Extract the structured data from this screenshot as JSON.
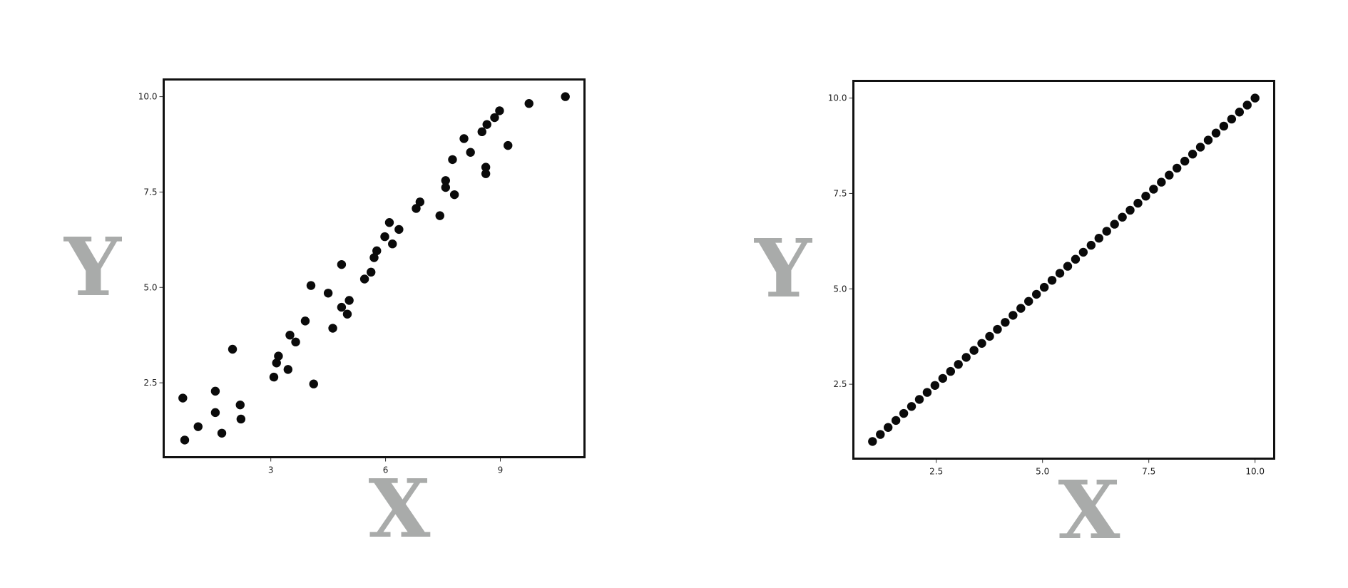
{
  "colors": {
    "points": "#0a0a0a",
    "axis_title": "#a9abaa",
    "frame": "#111111",
    "grid": "#efefef"
  },
  "chart_data": [
    {
      "type": "scatter",
      "xlabel": "X",
      "ylabel": "Y",
      "xlim": [
        0.2,
        11.2
      ],
      "ylim": [
        0.55,
        10.45
      ],
      "xticks": [
        3,
        6,
        9
      ],
      "yticks": [
        2.5,
        5.0,
        7.5,
        10.0
      ],
      "xtick_labels": [
        "3",
        "6",
        "9"
      ],
      "ytick_labels": [
        "2.5",
        "5.0",
        "7.5",
        "10.0"
      ],
      "grid": true,
      "points": [
        {
          "x": 0.7,
          "y": 2.1
        },
        {
          "x": 0.75,
          "y": 1.0
        },
        {
          "x": 1.1,
          "y": 1.35
        },
        {
          "x": 1.55,
          "y": 1.72
        },
        {
          "x": 1.55,
          "y": 2.28
        },
        {
          "x": 1.72,
          "y": 1.18
        },
        {
          "x": 2.0,
          "y": 3.38
        },
        {
          "x": 2.2,
          "y": 1.92
        },
        {
          "x": 2.22,
          "y": 1.55
        },
        {
          "x": 3.08,
          "y": 2.65
        },
        {
          "x": 3.15,
          "y": 3.02
        },
        {
          "x": 3.2,
          "y": 3.2
        },
        {
          "x": 3.45,
          "y": 2.85
        },
        {
          "x": 3.5,
          "y": 3.75
        },
        {
          "x": 3.65,
          "y": 3.57
        },
        {
          "x": 3.9,
          "y": 4.12
        },
        {
          "x": 4.05,
          "y": 5.05
        },
        {
          "x": 4.12,
          "y": 2.47
        },
        {
          "x": 4.5,
          "y": 4.85
        },
        {
          "x": 4.62,
          "y": 3.93
        },
        {
          "x": 4.85,
          "y": 5.6
        },
        {
          "x": 4.85,
          "y": 4.48
        },
        {
          "x": 5.0,
          "y": 4.3
        },
        {
          "x": 5.05,
          "y": 4.66
        },
        {
          "x": 5.45,
          "y": 5.22
        },
        {
          "x": 5.62,
          "y": 5.4
        },
        {
          "x": 5.7,
          "y": 5.78
        },
        {
          "x": 5.77,
          "y": 5.96
        },
        {
          "x": 5.98,
          "y": 6.33
        },
        {
          "x": 6.1,
          "y": 6.7
        },
        {
          "x": 6.18,
          "y": 6.14
        },
        {
          "x": 6.35,
          "y": 6.52
        },
        {
          "x": 6.8,
          "y": 7.07
        },
        {
          "x": 6.9,
          "y": 7.24
        },
        {
          "x": 7.42,
          "y": 6.88
        },
        {
          "x": 7.57,
          "y": 7.8
        },
        {
          "x": 7.57,
          "y": 7.62
        },
        {
          "x": 7.75,
          "y": 8.35
        },
        {
          "x": 7.8,
          "y": 7.43
        },
        {
          "x": 8.05,
          "y": 8.9
        },
        {
          "x": 8.22,
          "y": 8.54
        },
        {
          "x": 8.52,
          "y": 9.08
        },
        {
          "x": 8.62,
          "y": 8.15
        },
        {
          "x": 8.62,
          "y": 7.98
        },
        {
          "x": 8.65,
          "y": 9.27
        },
        {
          "x": 8.85,
          "y": 9.45
        },
        {
          "x": 8.98,
          "y": 9.63
        },
        {
          "x": 9.2,
          "y": 8.72
        },
        {
          "x": 9.75,
          "y": 9.82
        },
        {
          "x": 10.7,
          "y": 10.0
        }
      ]
    },
    {
      "type": "scatter",
      "xlabel": "X",
      "ylabel": "Y",
      "xlim": [
        0.55,
        10.45
      ],
      "ylim": [
        0.55,
        10.45
      ],
      "xticks": [
        2.5,
        5.0,
        7.5,
        10.0
      ],
      "yticks": [
        2.5,
        5.0,
        7.5,
        10.0
      ],
      "xtick_labels": [
        "2.5",
        "5.0",
        "7.5",
        "10.0"
      ],
      "ytick_labels": [
        "2.5",
        "5.0",
        "7.5",
        "10.0"
      ],
      "grid": true,
      "points": [
        {
          "x": 1.0,
          "y": 1.0
        },
        {
          "x": 1.184,
          "y": 1.184
        },
        {
          "x": 1.367,
          "y": 1.367
        },
        {
          "x": 1.551,
          "y": 1.551
        },
        {
          "x": 1.735,
          "y": 1.735
        },
        {
          "x": 1.918,
          "y": 1.918
        },
        {
          "x": 2.102,
          "y": 2.102
        },
        {
          "x": 2.286,
          "y": 2.286
        },
        {
          "x": 2.469,
          "y": 2.469
        },
        {
          "x": 2.653,
          "y": 2.653
        },
        {
          "x": 2.837,
          "y": 2.837
        },
        {
          "x": 3.02,
          "y": 3.02
        },
        {
          "x": 3.204,
          "y": 3.204
        },
        {
          "x": 3.388,
          "y": 3.388
        },
        {
          "x": 3.571,
          "y": 3.571
        },
        {
          "x": 3.755,
          "y": 3.755
        },
        {
          "x": 3.939,
          "y": 3.939
        },
        {
          "x": 4.122,
          "y": 4.122
        },
        {
          "x": 4.306,
          "y": 4.306
        },
        {
          "x": 4.49,
          "y": 4.49
        },
        {
          "x": 4.673,
          "y": 4.673
        },
        {
          "x": 4.857,
          "y": 4.857
        },
        {
          "x": 5.041,
          "y": 5.041
        },
        {
          "x": 5.224,
          "y": 5.224
        },
        {
          "x": 5.408,
          "y": 5.408
        },
        {
          "x": 5.592,
          "y": 5.592
        },
        {
          "x": 5.776,
          "y": 5.776
        },
        {
          "x": 5.959,
          "y": 5.959
        },
        {
          "x": 6.143,
          "y": 6.143
        },
        {
          "x": 6.327,
          "y": 6.327
        },
        {
          "x": 6.51,
          "y": 6.51
        },
        {
          "x": 6.694,
          "y": 6.694
        },
        {
          "x": 6.878,
          "y": 6.878
        },
        {
          "x": 7.061,
          "y": 7.061
        },
        {
          "x": 7.245,
          "y": 7.245
        },
        {
          "x": 7.429,
          "y": 7.429
        },
        {
          "x": 7.612,
          "y": 7.612
        },
        {
          "x": 7.796,
          "y": 7.796
        },
        {
          "x": 7.98,
          "y": 7.98
        },
        {
          "x": 8.163,
          "y": 8.163
        },
        {
          "x": 8.347,
          "y": 8.347
        },
        {
          "x": 8.531,
          "y": 8.531
        },
        {
          "x": 8.714,
          "y": 8.714
        },
        {
          "x": 8.898,
          "y": 8.898
        },
        {
          "x": 9.082,
          "y": 9.082
        },
        {
          "x": 9.265,
          "y": 9.265
        },
        {
          "x": 9.449,
          "y": 9.449
        },
        {
          "x": 9.633,
          "y": 9.633
        },
        {
          "x": 9.816,
          "y": 9.816
        },
        {
          "x": 10.0,
          "y": 10.0
        }
      ]
    }
  ]
}
